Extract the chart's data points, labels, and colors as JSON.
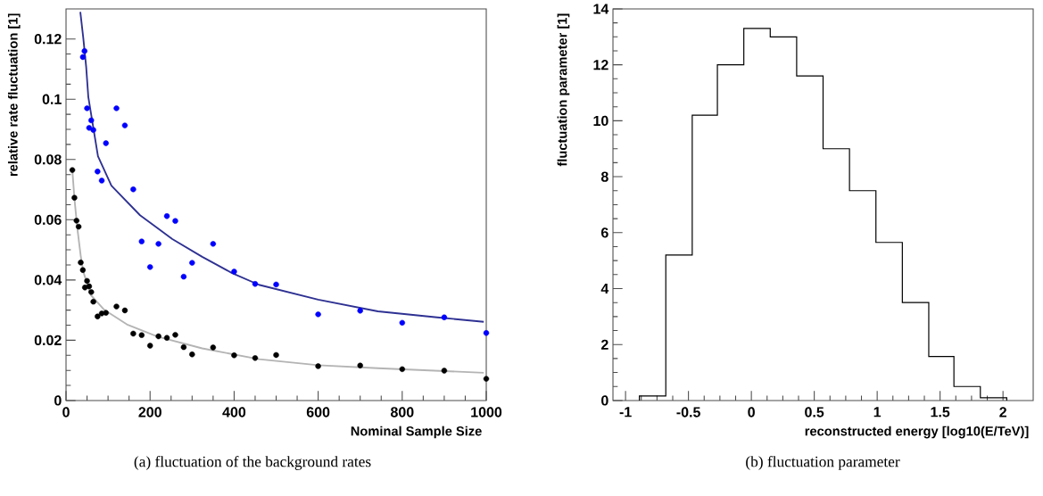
{
  "chart_data": [
    {
      "type": "scatter",
      "xlabel": "Nominal Sample Size",
      "ylabel": "relative rate fluctuation [1]",
      "annotations": [
        "(a) fluctuation of the background rates"
      ],
      "xlim": [
        0,
        1000
      ],
      "ylim": [
        0,
        0.13
      ],
      "xticks": [
        0,
        200,
        400,
        600,
        800,
        1000
      ],
      "yticks": [
        0,
        0.02,
        0.04,
        0.06,
        0.08,
        0.1,
        0.12
      ],
      "series": [
        {
          "type": "scatter",
          "marker": "circle",
          "color": "#0000ff",
          "x": [
            40,
            44,
            50,
            55,
            60,
            65,
            75,
            85,
            95,
            120,
            140,
            160,
            180,
            200,
            220,
            240,
            260,
            280,
            300,
            350,
            400,
            450,
            500,
            600,
            700,
            800,
            900,
            1000
          ],
          "values": [
            0.114,
            0.116,
            0.097,
            0.0905,
            0.093,
            0.0898,
            0.076,
            0.073,
            0.0854,
            0.097,
            0.0913,
            0.0701,
            0.0528,
            0.0443,
            0.052,
            0.0612,
            0.0596,
            0.0411,
            0.0457,
            0.052,
            0.0428,
            0.0387,
            0.0385,
            0.0286,
            0.0298,
            0.0258,
            0.0276,
            0.0224
          ]
        },
        {
          "type": "scatter",
          "marker": "circle",
          "color": "#000000",
          "x": [
            15,
            20,
            25,
            30,
            35,
            40,
            45,
            50,
            55,
            60,
            65,
            75,
            85,
            95,
            120,
            140,
            160,
            180,
            200,
            220,
            240,
            260,
            280,
            300,
            350,
            400,
            450,
            500,
            600,
            700,
            800,
            900,
            1000
          ],
          "values": [
            0.0765,
            0.0673,
            0.0597,
            0.0577,
            0.0458,
            0.0433,
            0.0375,
            0.0397,
            0.0379,
            0.036,
            0.0328,
            0.0279,
            0.0289,
            0.0291,
            0.0312,
            0.0299,
            0.0222,
            0.0217,
            0.0182,
            0.0213,
            0.0208,
            0.0218,
            0.0177,
            0.0153,
            0.0176,
            0.015,
            0.0141,
            0.0151,
            0.0114,
            0.0116,
            0.0104,
            0.0099,
            0.0072
          ]
        },
        {
          "type": "line",
          "marker": "none",
          "color": "#2e3192",
          "x": [
            34,
            41,
            48,
            53,
            76,
            108,
            176,
            253,
            324,
            395,
            459,
            600,
            742,
            883,
            994
          ],
          "values": [
            0.129,
            0.1204,
            0.1106,
            0.1008,
            0.0811,
            0.0713,
            0.0615,
            0.0536,
            0.0477,
            0.0423,
            0.0384,
            0.0335,
            0.0296,
            0.0276,
            0.0261
          ]
        },
        {
          "type": "line",
          "marker": "none",
          "color": "#b4b4b4",
          "x": [
            15,
            20,
            27,
            35,
            41,
            59,
            91,
            147,
            218,
            324,
            459,
            600,
            742,
            994
          ],
          "values": [
            0.0765,
            0.067,
            0.057,
            0.048,
            0.0428,
            0.035,
            0.0301,
            0.0251,
            0.0212,
            0.0173,
            0.0137,
            0.0117,
            0.0107,
            0.0092
          ]
        }
      ]
    },
    {
      "type": "histogram",
      "xlabel": "reconstructed energy [log10(E/TeV)]",
      "ylabel": "fluctuation parameter [1]",
      "annotations": [
        "(b) fluctuation parameter"
      ],
      "color": "#000000",
      "xlim": [
        -1.1,
        2.24
      ],
      "ylim": [
        0,
        14
      ],
      "xticks": [
        -1,
        -0.5,
        0,
        0.5,
        1,
        1.5,
        2
      ],
      "yticks": [
        0,
        2,
        4,
        6,
        8,
        10,
        12,
        14
      ],
      "bins": [
        -0.89,
        -0.68,
        -0.47,
        -0.27,
        -0.06,
        0.15,
        0.36,
        0.57,
        0.78,
        0.99,
        1.2,
        1.41,
        1.61,
        1.82,
        2.03
      ],
      "values": [
        0.16,
        5.2,
        10.2,
        12.0,
        13.3,
        13.0,
        11.6,
        9.0,
        7.5,
        5.65,
        3.5,
        1.57,
        0.5,
        0.1
      ]
    }
  ]
}
